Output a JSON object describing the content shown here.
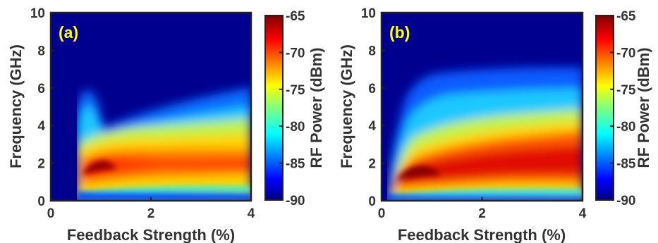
{
  "chart_data": [
    {
      "type": "heatmap",
      "panel_label": "(a)",
      "xlabel": "Feedback Strength (%)",
      "ylabel": "Frequency (GHz)",
      "xlim": [
        0,
        4
      ],
      "ylim": [
        0,
        10
      ],
      "xticks": [
        "0",
        "2",
        "4"
      ],
      "yticks": [
        "0",
        "2",
        "4",
        "6",
        "8",
        "10"
      ],
      "colorbar": {
        "label": "RF Power (dBm)",
        "range": [
          -90,
          -65
        ],
        "ticks": [
          "-65",
          "-70",
          "-75",
          "-80",
          "-85",
          "-90"
        ],
        "colormap": "jet"
      },
      "onset_feedback": 0.55,
      "peak_frequency_ghz": 2.0,
      "peak_power_dbm": -66,
      "max_frequency_extent_ghz": 6.0,
      "annotation_color": "#ffff00"
    },
    {
      "type": "heatmap",
      "panel_label": "(b)",
      "xlabel": "Feedback Strength (%)",
      "ylabel": "Frequency (GHz)",
      "xlim": [
        0,
        4
      ],
      "ylim": [
        0,
        10
      ],
      "xticks": [
        "0",
        "2",
        "4"
      ],
      "yticks": [
        "0",
        "2",
        "4",
        "6",
        "8",
        "10"
      ],
      "colorbar": {
        "label": "RF Power (dBm)",
        "range": [
          -90,
          -65
        ],
        "ticks": [
          "-65",
          "-70",
          "-75",
          "-80",
          "-85",
          "-90"
        ],
        "colormap": "jet"
      },
      "onset_feedback": 0.2,
      "peak_frequency_ghz": 1.6,
      "peak_power_dbm": -65,
      "max_frequency_extent_ghz": 7.0,
      "annotation_color": "#ffff00"
    }
  ]
}
